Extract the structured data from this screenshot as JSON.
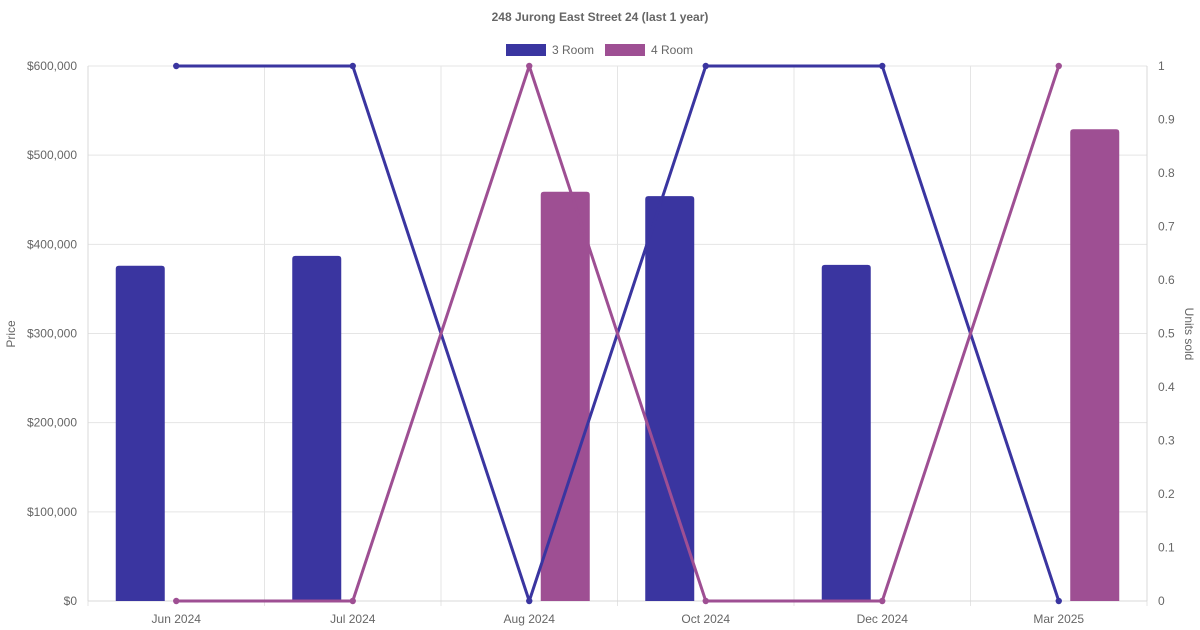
{
  "chart_data": {
    "type": "bar",
    "title": "248 Jurong East Street 24 (last 1 year)",
    "categories": [
      "Jun 2024",
      "Jul 2024",
      "Aug 2024",
      "Oct 2024",
      "Dec 2024",
      "Mar 2025"
    ],
    "y_left": {
      "label": "Price",
      "min": 0,
      "max": 600000,
      "ticks": [
        "$0",
        "$100,000",
        "$200,000",
        "$300,000",
        "$400,000",
        "$500,000",
        "$600,000"
      ]
    },
    "y_right": {
      "label": "Units sold",
      "min": 0,
      "max": 1,
      "ticks": [
        "0",
        "0.1",
        "0.2",
        "0.3",
        "0.4",
        "0.5",
        "0.6",
        "0.7",
        "0.8",
        "0.9",
        "1"
      ]
    },
    "grid": true,
    "legend_position": "top-center",
    "series": [
      {
        "name": "3 Room",
        "color": "#3a35a0",
        "price": [
          376000,
          387000,
          null,
          454000,
          377000,
          null
        ],
        "units": [
          1,
          1,
          0,
          1,
          1,
          0
        ]
      },
      {
        "name": "4 Room",
        "color": "#9e4f93",
        "price": [
          null,
          null,
          459000,
          null,
          null,
          529000
        ],
        "units": [
          0,
          0,
          1,
          0,
          0,
          1
        ]
      }
    ]
  }
}
